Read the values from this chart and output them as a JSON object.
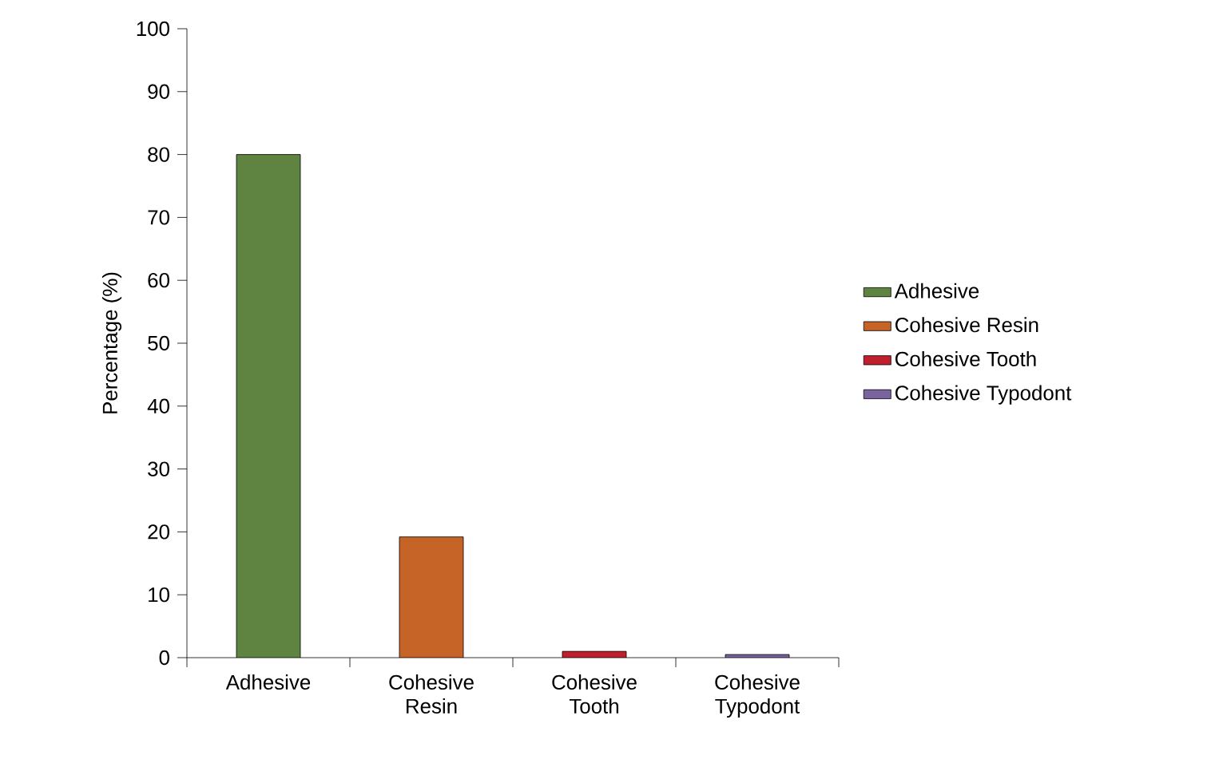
{
  "chart_data": {
    "type": "bar",
    "ylabel": "Percentage (%)",
    "categories": [
      "Adhesive",
      "Cohesive Resin",
      "Cohesive Tooth",
      "Cohesive Typodont"
    ],
    "series": [
      {
        "name": "Adhesive",
        "color": "#5f8340",
        "values": [
          80,
          null,
          null,
          null
        ]
      },
      {
        "name": "Cohesive Resin",
        "color": "#c66427",
        "values": [
          null,
          19.2,
          null,
          null
        ]
      },
      {
        "name": "Cohesive Tooth",
        "color": "#c0202e",
        "values": [
          null,
          null,
          1.0,
          null
        ]
      },
      {
        "name": "Cohesive Typodont",
        "color": "#7a64a0",
        "values": [
          null,
          null,
          null,
          0.5
        ]
      }
    ],
    "ylim": [
      0,
      100
    ],
    "yticks": [
      0,
      10,
      20,
      30,
      40,
      50,
      60,
      70,
      80,
      90,
      100
    ],
    "legend": "right"
  }
}
